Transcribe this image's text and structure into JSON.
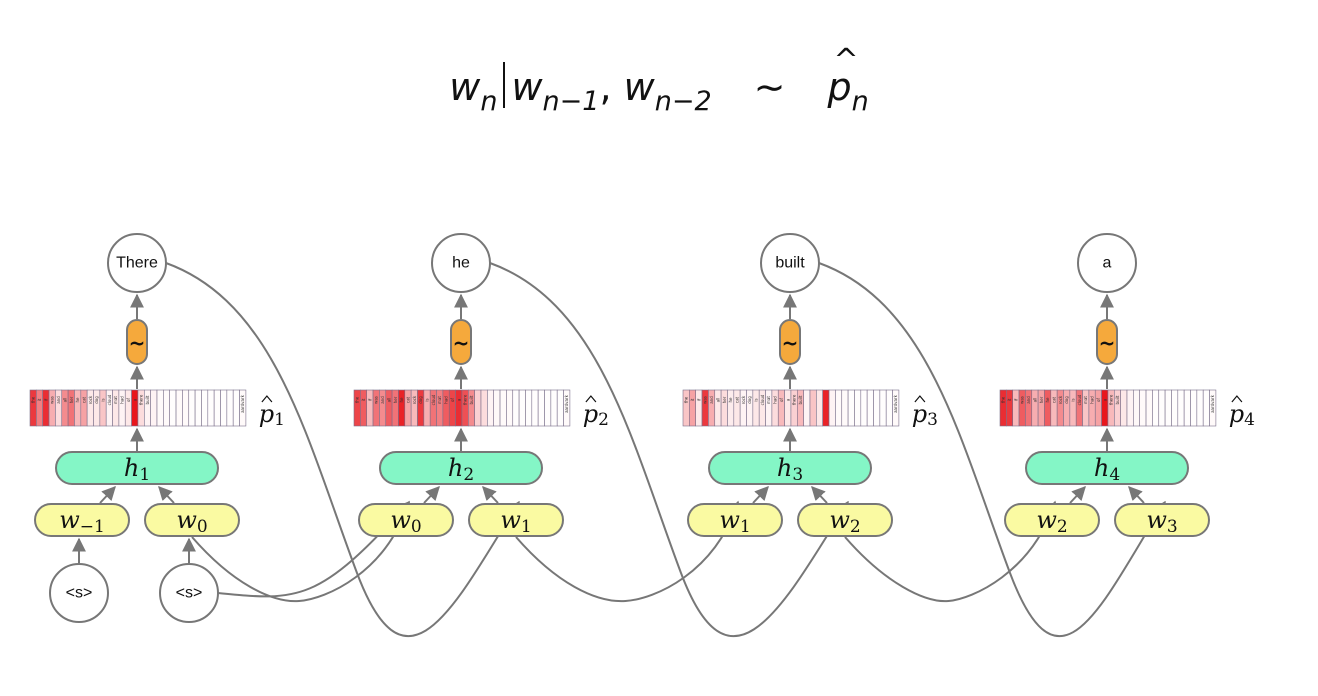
{
  "formula": {
    "w": "w",
    "sub_n": "n",
    "sub_n1": "n−1",
    "comma": ", ",
    "sub_n2": "n−2",
    "sim": "∼",
    "p": "p",
    "sub_pn": "n"
  },
  "colors": {
    "hidden_fill": "#84f6c6",
    "input_fill": "#fafaa2",
    "sampler_fill": "#f5a93c",
    "node_stroke": "#777777",
    "edge": "#777777",
    "prob_high": "#e8161c"
  },
  "vocab_labels": [
    "the",
    "it",
    "if",
    "was",
    "and",
    "all",
    "her",
    "he",
    "cat",
    "rock",
    "dog",
    "is",
    "cloud",
    "mat",
    "had",
    "of",
    "a",
    "there",
    "built"
  ],
  "vocab_last_label": "aardvark",
  "steps": [
    {
      "output_word": "There",
      "sample_symbol": "~",
      "dist_label": "p",
      "dist_sub": "1",
      "hidden_label": "h",
      "hidden_sub": "1",
      "inputs": [
        {
          "label": "w",
          "sub": "−1"
        },
        {
          "label": "w",
          "sub": "0"
        }
      ],
      "probs": [
        0.85,
        0.55,
        0.9,
        0.35,
        0.15,
        0.5,
        0.6,
        0.3,
        0.4,
        0.1,
        0.1,
        0.25,
        0.05,
        0.1,
        0.05,
        0.1,
        1.0,
        0.15,
        0.05,
        0.05,
        0.02,
        0.02,
        0.01,
        0.02,
        0.02,
        0.01,
        0.01,
        0.01,
        0.01,
        0.01,
        0.01,
        0.01,
        0.01,
        0.02
      ]
    },
    {
      "output_word": "he",
      "sample_symbol": "~",
      "dist_label": "p",
      "dist_sub": "2",
      "hidden_label": "h",
      "hidden_sub": "2",
      "inputs": [
        {
          "label": "w",
          "sub": "0"
        },
        {
          "label": "w",
          "sub": "1"
        }
      ],
      "probs": [
        0.8,
        0.7,
        0.3,
        0.6,
        0.5,
        0.7,
        0.6,
        0.95,
        0.4,
        0.3,
        0.85,
        0.35,
        0.6,
        0.55,
        0.7,
        0.8,
        0.9,
        0.75,
        0.5,
        0.2,
        0.15,
        0.05,
        0.03,
        0.02,
        0.02,
        0.01,
        0.01,
        0.01,
        0.01,
        0.01,
        0.01,
        0.01,
        0.01,
        0.02
      ]
    },
    {
      "output_word": "built",
      "sample_symbol": "~",
      "dist_label": "p",
      "dist_sub": "3",
      "hidden_label": "h",
      "hidden_sub": "3",
      "inputs": [
        {
          "label": "w",
          "sub": "1"
        },
        {
          "label": "w",
          "sub": "2"
        }
      ],
      "probs": [
        0.25,
        0.4,
        0.1,
        0.85,
        0.35,
        0.1,
        0.15,
        0.08,
        0.1,
        0.05,
        0.05,
        0.1,
        0.1,
        0.05,
        0.15,
        0.3,
        0.1,
        0.2,
        0.3,
        0.05,
        0.25,
        0.1,
        0.95,
        0.05,
        0.02,
        0.02,
        0.01,
        0.01,
        0.01,
        0.01,
        0.01,
        0.01,
        0.01,
        0.02
      ]
    },
    {
      "output_word": "a",
      "sample_symbol": "~",
      "dist_label": "p",
      "dist_sub": "4",
      "hidden_label": "h",
      "hidden_sub": "4",
      "inputs": [
        {
          "label": "w",
          "sub": "2"
        },
        {
          "label": "w",
          "sub": "3"
        }
      ],
      "probs": [
        0.9,
        0.85,
        0.3,
        0.7,
        0.6,
        0.35,
        0.4,
        0.7,
        0.3,
        0.5,
        0.35,
        0.3,
        0.6,
        0.25,
        0.35,
        0.4,
        1.0,
        0.3,
        0.2,
        0.1,
        0.05,
        0.03,
        0.02,
        0.02,
        0.01,
        0.01,
        0.01,
        0.01,
        0.01,
        0.01,
        0.01,
        0.01,
        0.01,
        0.02
      ]
    }
  ],
  "start_tokens": [
    "<s>",
    "<s>"
  ]
}
